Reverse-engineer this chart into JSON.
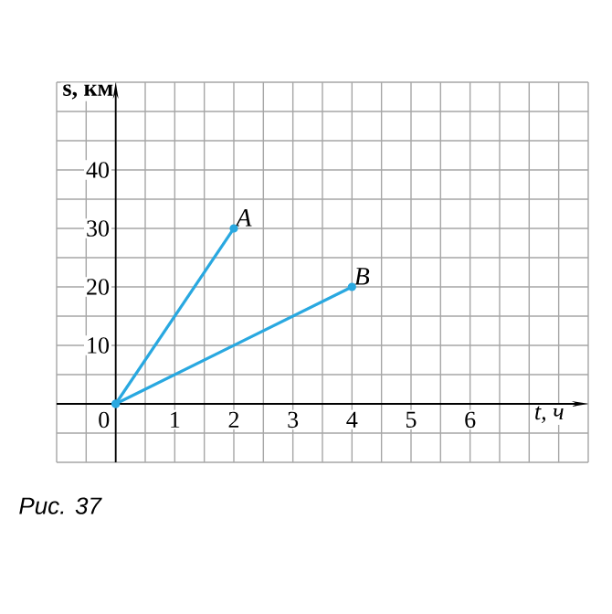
{
  "chart_data": {
    "type": "line",
    "xlabel": "t, ч",
    "ylabel": "s, км",
    "annotations": [
      "Рис. 37"
    ],
    "xlim": [
      -1,
      8
    ],
    "ylim": [
      -10,
      55
    ],
    "xticks": [
      0,
      1,
      2,
      3,
      4,
      5,
      6
    ],
    "yticks": [
      10,
      20,
      30,
      40
    ],
    "grid": true,
    "marker": "circle",
    "line_style": "solid",
    "legend": false,
    "series": [
      {
        "name": "A",
        "color": "#29a8e0",
        "x": [
          0,
          2
        ],
        "values": [
          0,
          30
        ]
      },
      {
        "name": "B",
        "color": "#29a8e0",
        "x": [
          0,
          4
        ],
        "values": [
          0,
          20
        ]
      }
    ]
  }
}
